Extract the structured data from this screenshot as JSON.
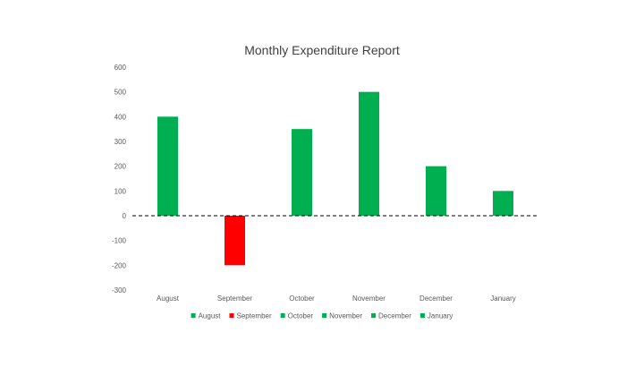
{
  "chart_data": {
    "type": "bar",
    "title": "Monthly Expenditure Report",
    "xlabel": "",
    "ylabel": "",
    "categories": [
      "August",
      "September",
      "October",
      "November",
      "December",
      "January"
    ],
    "values": [
      400,
      -200,
      350,
      500,
      200,
      100
    ],
    "ylim": [
      -300,
      600
    ],
    "yticks": [
      600,
      500,
      400,
      300,
      200,
      100,
      0,
      -100,
      -200,
      -300
    ],
    "colors": [
      "#00b050",
      "#ff0000",
      "#00b050",
      "#00b050",
      "#00b050",
      "#00b050"
    ],
    "zero_line": "dashed",
    "grid": false,
    "legend": {
      "position": "bottom",
      "entries": [
        {
          "label": "August",
          "color": "#00b050"
        },
        {
          "label": "September",
          "color": "#ff0000"
        },
        {
          "label": "October",
          "color": "#00b050"
        },
        {
          "label": "November",
          "color": "#00b050"
        },
        {
          "label": "December",
          "color": "#00b050"
        },
        {
          "label": "January",
          "color": "#00b050"
        }
      ]
    }
  },
  "colors": {
    "positive": "#00b050",
    "negative": "#ff0000",
    "text": "#595959",
    "title": "#404040",
    "zero_line": "#000000"
  }
}
